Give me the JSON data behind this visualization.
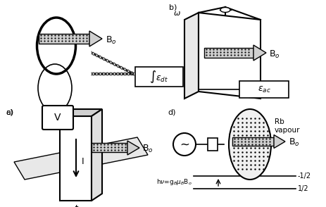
{
  "fig_w": 4.64,
  "fig_h": 2.94,
  "dpi": 100,
  "gray_arrow": "#c0c0c0",
  "hatch_color": "#888888",
  "panel_labels": [
    "a)",
    "b)",
    "c)",
    "d)"
  ],
  "Bo_text": "B$_o$",
  "int_text": "$\\int\\varepsilon_{dt}$",
  "eac_text": "$\\varepsilon_{ac}$",
  "omega_text": "$\\omega$",
  "V_text": "V",
  "I_text": "I",
  "t_text": "t",
  "Rb_text": "Rb\nvapour",
  "hnu_text": "h$\\nu$=g$_B\\mu_B$B$_o$",
  "half_pos": "-1/2",
  "half_neg": "1/2"
}
